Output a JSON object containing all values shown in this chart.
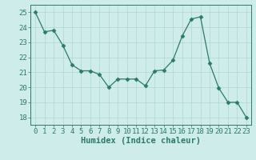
{
  "x": [
    0,
    1,
    2,
    3,
    4,
    5,
    6,
    7,
    8,
    9,
    10,
    11,
    12,
    13,
    14,
    15,
    16,
    17,
    18,
    19,
    20,
    21,
    22,
    23
  ],
  "y": [
    25.0,
    23.7,
    23.8,
    22.8,
    21.5,
    21.1,
    21.1,
    20.85,
    20.0,
    20.55,
    20.55,
    20.55,
    20.1,
    21.1,
    21.15,
    21.8,
    23.4,
    24.55,
    24.7,
    21.6,
    19.95,
    19.0,
    19.0,
    18.0
  ],
  "line_color": "#2d7a68",
  "marker": "D",
  "marker_size": 2.5,
  "bg_color": "#ceecea",
  "grid_color": "#aed6d2",
  "xlabel": "Humidex (Indice chaleur)",
  "ylim": [
    17.5,
    25.5
  ],
  "xlim": [
    -0.5,
    23.5
  ],
  "yticks": [
    18,
    19,
    20,
    21,
    22,
    23,
    24,
    25
  ],
  "xticks": [
    0,
    1,
    2,
    3,
    4,
    5,
    6,
    7,
    8,
    9,
    10,
    11,
    12,
    13,
    14,
    15,
    16,
    17,
    18,
    19,
    20,
    21,
    22,
    23
  ],
  "tick_color": "#2d7a68",
  "label_color": "#2d7a68",
  "font_size": 6.5,
  "xlabel_font_size": 7.5
}
